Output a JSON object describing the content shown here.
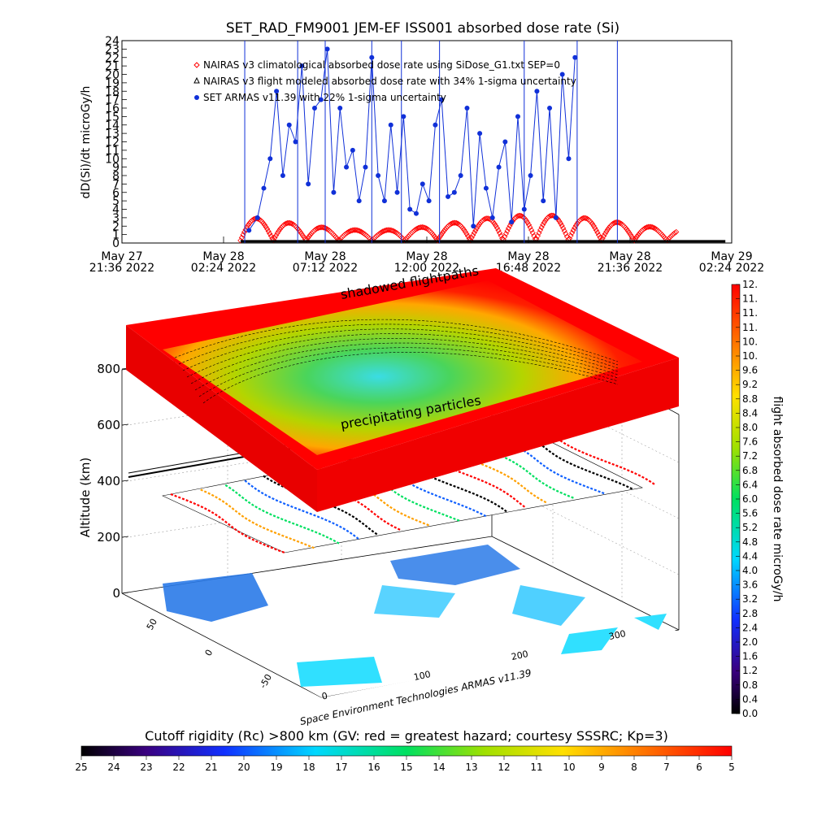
{
  "chart_data": [
    {
      "type": "line",
      "title": "SET_RAD_FM9001  JEM-EF ISS001 absorbed dose rate (Si)",
      "ylabel": "dD(Si)/dt microGy/h",
      "ylim": [
        0,
        24
      ],
      "yticks": [
        "0",
        "1",
        "2",
        "3",
        "4",
        "5",
        "6",
        "7",
        "8",
        "9",
        "10",
        "11",
        "12",
        "13",
        "14",
        "15",
        "16",
        "17",
        "18",
        "19",
        "20",
        "21",
        "22",
        "23",
        "24"
      ],
      "xlim_hours": [
        0,
        28.8
      ],
      "xticks": [
        {
          "line1": "May 27",
          "line2": "21:36 2022"
        },
        {
          "line1": "May 28",
          "line2": "02:24 2022"
        },
        {
          "line1": "May 28",
          "line2": "07:12 2022"
        },
        {
          "line1": "May 28",
          "line2": "12:00 2022"
        },
        {
          "line1": "May 28",
          "line2": "16:48 2022"
        },
        {
          "line1": "May 28",
          "line2": "21:36 2022"
        },
        {
          "line1": "May 29",
          "line2": "02:24 2022"
        }
      ],
      "legend_position": "top-left",
      "series": [
        {
          "name": "NAIRAS v3 climatological absorbed dose rate using SiDose_G1.txt SEP=0",
          "color": "#ff0000",
          "marker": "diamond",
          "baseline": 0.3,
          "amplitude": 3.0,
          "period_hours": 1.55,
          "start_hours": 5.6,
          "end_hours": 26.2
        },
        {
          "name": "NAIRAS v3 flight modeled absorbed dose rate with 34% 1-sigma uncertainty",
          "color": "#000000",
          "marker": "triangle",
          "value": 0.2,
          "start_hours": 5.6,
          "end_hours": 28.5
        },
        {
          "name": "SET ARMAS v11.39 with 22% 1-sigma uncertainty",
          "color": "#1030d8",
          "marker": "dot",
          "x": [
            6.0,
            6.4,
            6.7,
            7.0,
            7.3,
            7.6,
            7.9,
            8.2,
            8.5,
            8.8,
            9.1,
            9.4,
            9.7,
            10.0,
            10.3,
            10.6,
            10.9,
            11.2,
            11.5,
            11.8,
            12.1,
            12.4,
            12.7,
            13.0,
            13.3,
            13.6,
            13.9,
            14.2,
            14.5,
            14.8,
            15.1,
            15.4,
            15.7,
            16.0,
            16.3,
            16.6,
            16.9,
            17.2,
            17.5,
            17.8,
            18.1,
            18.4,
            18.7,
            19.0,
            19.3,
            19.6,
            19.9,
            20.2,
            20.5,
            20.8,
            21.1,
            21.4
          ],
          "y": [
            1.5,
            3.0,
            6.5,
            10.0,
            18.0,
            8.0,
            14.0,
            12.0,
            21.0,
            7.0,
            16.0,
            17.0,
            23.0,
            6.0,
            16.0,
            9.0,
            11.0,
            5.0,
            9.0,
            22.0,
            8.0,
            5.0,
            14.0,
            6.0,
            15.0,
            4.0,
            3.5,
            7.0,
            5.0,
            14.0,
            17.0,
            5.5,
            6.0,
            8.0,
            16.0,
            2.0,
            13.0,
            6.5,
            3.0,
            9.0,
            12.0,
            2.5,
            15.0,
            4.0,
            8.0,
            18.0,
            5.0,
            16.0,
            3.0,
            20.0,
            10.0,
            22.0
          ]
        }
      ]
    },
    {
      "type": "heatmap",
      "zlabel": "flight absorbed dose rate microGy/h",
      "zlim": [
        0.0,
        12.0
      ],
      "colorbar_ticks": [
        "0.0",
        "0.4",
        "0.8",
        "1.2",
        "1.6",
        "2.0",
        "2.4",
        "2.8",
        "3.2",
        "3.6",
        "4.0",
        "4.4",
        "4.8",
        "5.2",
        "5.6",
        "6.0",
        "6.4",
        "6.8",
        "7.2",
        "7.6",
        "8.0",
        "8.4",
        "8.8",
        "9.2",
        "9.6",
        "10.",
        "10.",
        "11.",
        "11.",
        "11.",
        "12."
      ],
      "ylabel": "Altitude (km)",
      "zticks_altitude": [
        "0",
        "200",
        "400",
        "600",
        "800"
      ],
      "lat_ticks": [
        "50",
        "0",
        "-50"
      ],
      "lon_ticks": [
        "0",
        "100",
        "200",
        "300"
      ],
      "annotations": [
        "shadowed flightpaths",
        "precipitating particles"
      ],
      "credit": "Space Environment Technologies ARMAS v11.39"
    },
    {
      "type": "heatmap",
      "title": "Cutoff rigidity (Rc) >800 km (GV: red = greatest hazard; courtesy SSSRC; Kp=3)",
      "ticks": [
        "25",
        "24",
        "23",
        "22",
        "21",
        "20",
        "19",
        "18",
        "17",
        "16",
        "15",
        "14",
        "13",
        "12",
        "11",
        "10",
        "9",
        "8",
        "7",
        "6",
        "5"
      ],
      "range": [
        25,
        5
      ]
    }
  ]
}
